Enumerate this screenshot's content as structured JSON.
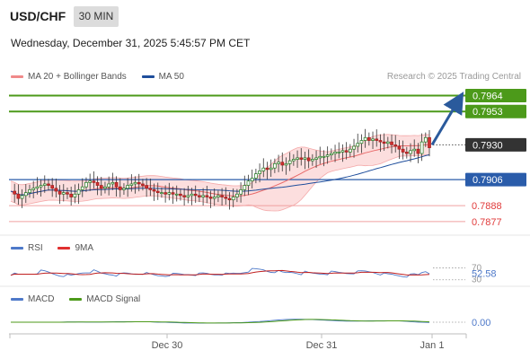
{
  "header": {
    "symbol": "USD/CHF",
    "timeframe": "30 MIN",
    "datetime": "Wednesday, December 31, 2025 5:45:57 PM CET"
  },
  "main_legend": {
    "items": [
      {
        "label": "MA 20 + Bollinger Bands",
        "color": "#f08a8a"
      },
      {
        "label": "MA 50",
        "color": "#1f4e9c"
      }
    ],
    "credit": "Research © 2025 Trading Central"
  },
  "levels": {
    "resistance2": {
      "value": 0.7964,
      "label": "0.7964",
      "color": "#4c9a1a"
    },
    "resistance1": {
      "value": 0.7953,
      "label": "0.7953",
      "color": "#4c9a1a"
    },
    "current": {
      "value": 0.793,
      "label": "0.7930",
      "color": "#333333"
    },
    "pivot": {
      "value": 0.7906,
      "label": "0.7906",
      "color": "#2a5caa"
    },
    "support1": {
      "value": 0.7888,
      "label": "0.7888",
      "color": "#e03a3a"
    },
    "support2": {
      "value": 0.7877,
      "label": "0.7877",
      "color": "#e03a3a"
    }
  },
  "rsi": {
    "legend": [
      {
        "label": "RSI",
        "color": "#4e79c9"
      },
      {
        "label": "9MA",
        "color": "#e03030"
      }
    ],
    "ticks": [
      "70",
      "30"
    ],
    "value_label": "52.58",
    "value": 52.58
  },
  "macd": {
    "legend": [
      {
        "label": "MACD",
        "color": "#4e79c9"
      },
      {
        "label": "MACD Signal",
        "color": "#4c9a1a"
      }
    ],
    "value_label": "0.00",
    "value": 0.0
  },
  "x_axis": {
    "labels": [
      "Dec 30",
      "Dec 31",
      "Jan 1"
    ]
  },
  "chart_data": {
    "type": "candlestick",
    "symbol": "USD/CHF",
    "timeframe": "30 MIN",
    "ylim": [
      0.7872,
      0.7968
    ],
    "x_tick_labels": [
      "Dec 30",
      "Dec 31",
      "Jan 1"
    ],
    "projection": {
      "from": 0.793,
      "to": 0.7964
    },
    "price_path": [
      0.7898,
      0.7896,
      0.7893,
      0.7895,
      0.7897,
      0.7899,
      0.79,
      0.7901,
      0.7902,
      0.7903,
      0.7902,
      0.79,
      0.7898,
      0.7896,
      0.7897,
      0.7896,
      0.7894,
      0.7896,
      0.7899,
      0.7901,
      0.7904,
      0.7905,
      0.7904,
      0.7902,
      0.79,
      0.7901,
      0.7903,
      0.7904,
      0.7901,
      0.7899,
      0.79,
      0.7902,
      0.7903,
      0.7904,
      0.7903,
      0.7902,
      0.79,
      0.7899,
      0.7898,
      0.7897,
      0.7897,
      0.7896,
      0.7897,
      0.7896,
      0.7896,
      0.7895,
      0.7894,
      0.7895,
      0.7896,
      0.7895,
      0.7894,
      0.7895,
      0.7894,
      0.7893,
      0.7894,
      0.7895,
      0.7894,
      0.7893,
      0.7892,
      0.7894,
      0.7896,
      0.7899,
      0.7902,
      0.7905,
      0.7907,
      0.791,
      0.7912,
      0.7914,
      0.7913,
      0.7914,
      0.7917,
      0.7918,
      0.7916,
      0.7917,
      0.7919,
      0.792,
      0.7921,
      0.792,
      0.7921,
      0.7919,
      0.792,
      0.7921,
      0.7922,
      0.7922,
      0.7923,
      0.7924,
      0.7925,
      0.7925,
      0.7926,
      0.7925,
      0.7927,
      0.7929,
      0.7931,
      0.7933,
      0.7935,
      0.7933,
      0.7934,
      0.7933,
      0.7932,
      0.7931,
      0.7932,
      0.793,
      0.7929,
      0.7927,
      0.7925,
      0.7924,
      0.7926,
      0.7927,
      0.7924,
      0.7932,
      0.7935,
      0.7928
    ],
    "overlays": [
      "MA 20 + Bollinger Bands",
      "MA 50"
    ]
  }
}
